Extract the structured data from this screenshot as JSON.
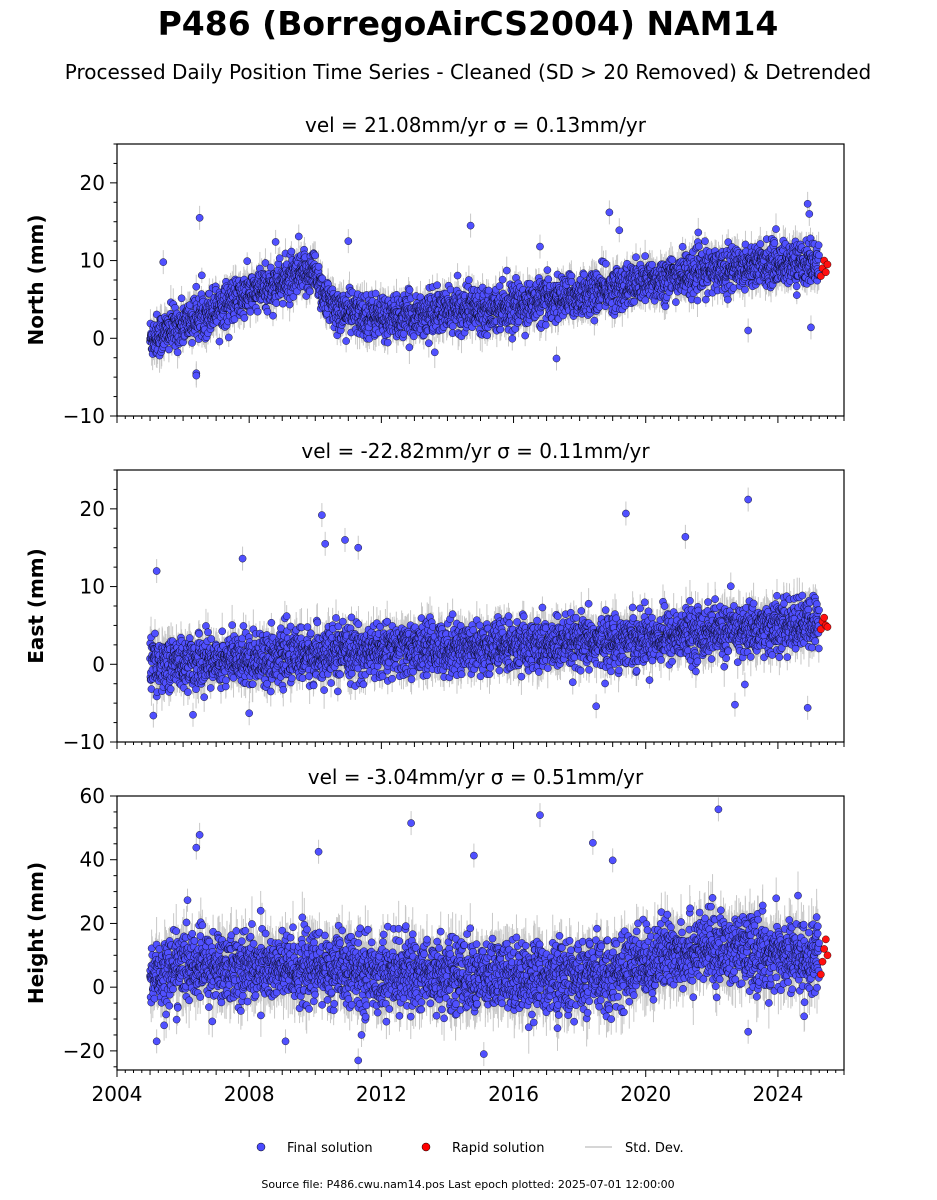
{
  "title": "P486 (BorregoAirCS2004) NAM14",
  "subtitle": "Processed Daily Position Time Series - Cleaned (SD > 20 Removed) & Detrended",
  "footer": "Source file: P486.cwu.nam14.pos  Last epoch plotted: 2025-07-01 12:00:00",
  "legend": {
    "placement": "bottom-center",
    "items": [
      {
        "label": "Final solution",
        "color": "#4b4bff",
        "marker": "circle"
      },
      {
        "label": "Rapid solution",
        "color": "#ff0000",
        "marker": "circle"
      },
      {
        "label": "Std. Dev.",
        "color": "#c8c8c8",
        "marker": "line"
      }
    ]
  },
  "colors": {
    "final": "#5050ff",
    "rapid": "#ff1010",
    "stddev": "#c8c8c8",
    "edge": "#000000"
  },
  "chart_data": [
    {
      "type": "scatter",
      "title": "vel = 21.08mm/yr   σ = 0.13mm/yr",
      "ylabel": "North (mm)",
      "xlim": [
        2004,
        2026
      ],
      "ylim": [
        -10,
        25
      ],
      "yticks": [
        -10,
        0,
        10,
        20
      ],
      "xticks": [
        2004,
        2008,
        2012,
        2016,
        2020,
        2024
      ],
      "show_xtick_labels": false,
      "series": [
        {
          "name": "Final solution",
          "x": [
            2005.0,
            2005.5,
            2006.0,
            2006.5,
            2007.0,
            2007.5,
            2008.0,
            2008.5,
            2009.0,
            2009.5,
            2010.0,
            2010.3,
            2010.6,
            2011.0,
            2011.5,
            2012.0,
            2012.5,
            2013.0,
            2013.5,
            2014.0,
            2014.5,
            2015.0,
            2015.5,
            2016.0,
            2016.5,
            2017.0,
            2017.5,
            2018.0,
            2018.5,
            2019.0,
            2019.5,
            2020.0,
            2020.5,
            2021.0,
            2021.5,
            2022.0,
            2022.5,
            2023.0,
            2023.5,
            2024.0,
            2024.5,
            2025.0
          ],
          "y": [
            0.0,
            0.8,
            1.8,
            2.8,
            4.0,
            4.8,
            5.6,
            6.4,
            7.2,
            7.8,
            8.8,
            5.0,
            3.8,
            3.4,
            3.0,
            2.8,
            2.6,
            3.0,
            3.2,
            3.5,
            3.8,
            3.9,
            4.0,
            4.2,
            4.5,
            4.9,
            5.2,
            5.5,
            5.9,
            6.4,
            6.8,
            7.2,
            7.6,
            8.0,
            8.4,
            8.7,
            9.0,
            9.3,
            9.5,
            9.6,
            9.7,
            9.7
          ]
        },
        {
          "name": "Rapid solution",
          "x": [
            2025.3,
            2025.35,
            2025.4,
            2025.45,
            2025.5
          ],
          "y": [
            8.0,
            9.0,
            10.0,
            8.5,
            9.5
          ]
        }
      ],
      "outliers": {
        "x": [
          2006.5,
          2005.4,
          2006.4,
          2006.4,
          2014.7,
          2018.9,
          2019.2,
          2023.1,
          2024.9,
          2024.95,
          2025.0,
          2011.0,
          2008.8,
          2009.5,
          2016.8,
          2017.3
        ],
        "y": [
          15.5,
          9.8,
          -4.5,
          -4.8,
          14.5,
          16.2,
          13.9,
          1.0,
          17.3,
          16.0,
          1.4,
          12.5,
          12.4,
          13.1,
          11.8,
          -2.6
        ]
      },
      "stddev_typical_mm": 1.5
    },
    {
      "type": "scatter",
      "title": "vel = -22.82mm/yr   σ = 0.11mm/yr",
      "ylabel": "East (mm)",
      "xlim": [
        2004,
        2026
      ],
      "ylim": [
        -10,
        25
      ],
      "yticks": [
        -10,
        0,
        10,
        20
      ],
      "xticks": [
        2004,
        2008,
        2012,
        2016,
        2020,
        2024
      ],
      "show_xtick_labels": false,
      "series": [
        {
          "name": "Final solution",
          "x": [
            2005.0,
            2006.0,
            2007.0,
            2008.0,
            2009.0,
            2010.0,
            2011.0,
            2012.0,
            2013.0,
            2014.0,
            2015.0,
            2016.0,
            2017.0,
            2018.0,
            2019.0,
            2020.0,
            2021.0,
            2022.0,
            2023.0,
            2024.0,
            2025.0
          ],
          "y": [
            0.0,
            0.2,
            0.5,
            0.8,
            1.0,
            1.2,
            1.5,
            1.7,
            2.0,
            2.1,
            2.2,
            2.3,
            2.4,
            2.6,
            3.0,
            3.4,
            3.8,
            4.1,
            4.4,
            4.8,
            5.2
          ]
        },
        {
          "name": "Rapid solution",
          "x": [
            2025.3,
            2025.35,
            2025.4,
            2025.45,
            2025.5
          ],
          "y": [
            4.5,
            5.5,
            6.0,
            5.0,
            4.8
          ]
        }
      ],
      "outliers": {
        "x": [
          2005.2,
          2005.1,
          2006.3,
          2007.8,
          2010.2,
          2010.3,
          2010.9,
          2011.3,
          2019.4,
          2021.2,
          2023.1,
          2022.7,
          2023.0,
          2024.9,
          2008.0,
          2018.5
        ],
        "y": [
          12.0,
          -6.6,
          -6.5,
          13.6,
          19.2,
          15.5,
          16.0,
          15.0,
          19.4,
          16.4,
          21.2,
          -5.2,
          -2.6,
          -5.6,
          -6.3,
          -5.4
        ]
      },
      "stddev_typical_mm": 1.8
    },
    {
      "type": "scatter",
      "title": "vel = -3.04mm/yr   σ = 0.51mm/yr",
      "ylabel": "Height (mm)",
      "xlabel": "",
      "xlim": [
        2004,
        2026
      ],
      "ylim": [
        -26,
        60
      ],
      "yticks": [
        -20,
        0,
        20,
        40,
        60
      ],
      "xticks": [
        2004,
        2008,
        2012,
        2016,
        2020,
        2024
      ],
      "show_xtick_labels": true,
      "series": [
        {
          "name": "Final solution",
          "x": [
            2005.0,
            2006.0,
            2007.0,
            2008.0,
            2009.0,
            2010.0,
            2011.0,
            2012.0,
            2013.0,
            2014.0,
            2015.0,
            2016.0,
            2017.0,
            2018.0,
            2019.0,
            2020.0,
            2021.0,
            2022.0,
            2023.0,
            2024.0,
            2025.0
          ],
          "y": [
            3.0,
            7.0,
            6.0,
            6.5,
            5.5,
            6.0,
            5.0,
            4.0,
            4.5,
            4.0,
            3.0,
            3.5,
            3.0,
            2.5,
            4.0,
            8.0,
            11.0,
            12.0,
            11.0,
            10.0,
            9.0
          ]
        },
        {
          "name": "Rapid solution",
          "x": [
            2025.3,
            2025.35,
            2025.4,
            2025.45,
            2025.5
          ],
          "y": [
            4.0,
            8.0,
            12.0,
            15.0,
            10.0
          ]
        }
      ],
      "outliers": {
        "x": [
          2005.2,
          2006.5,
          2006.4,
          2010.1,
          2011.3,
          2012.9,
          2014.8,
          2016.8,
          2018.4,
          2022.2,
          2019.0,
          2011.4,
          2015.1,
          2023.1,
          2009.1
        ],
        "y": [
          -17.0,
          47.8,
          43.8,
          42.5,
          -23.0,
          51.5,
          41.3,
          54.0,
          45.3,
          55.8,
          39.8,
          -15.0,
          -21.0,
          -14.0,
          -17.0
        ]
      },
      "stddev_typical_mm": 6.0
    }
  ]
}
